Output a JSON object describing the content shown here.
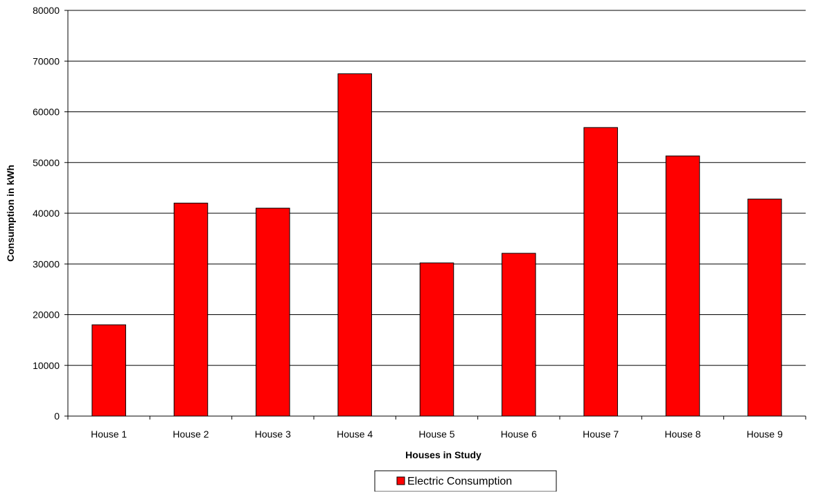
{
  "chart_data": {
    "type": "bar",
    "categories": [
      "House 1",
      "House 2",
      "House 3",
      "House 4",
      "House 5",
      "House 6",
      "House 7",
      "House 8",
      "House 9"
    ],
    "series": [
      {
        "name": "Electric Consumption",
        "values": [
          18000,
          42000,
          41000,
          67500,
          30200,
          32100,
          56900,
          51300,
          42800
        ],
        "color": "#ff0000"
      }
    ],
    "xlabel": "Houses in Study",
    "ylabel": "Consumption in kWh",
    "ylim": [
      0,
      80000
    ],
    "yticks": [
      "0",
      "10000",
      "20000",
      "30000",
      "40000",
      "50000",
      "60000",
      "70000",
      "80000"
    ],
    "grid": true,
    "legend_position": "bottom"
  }
}
